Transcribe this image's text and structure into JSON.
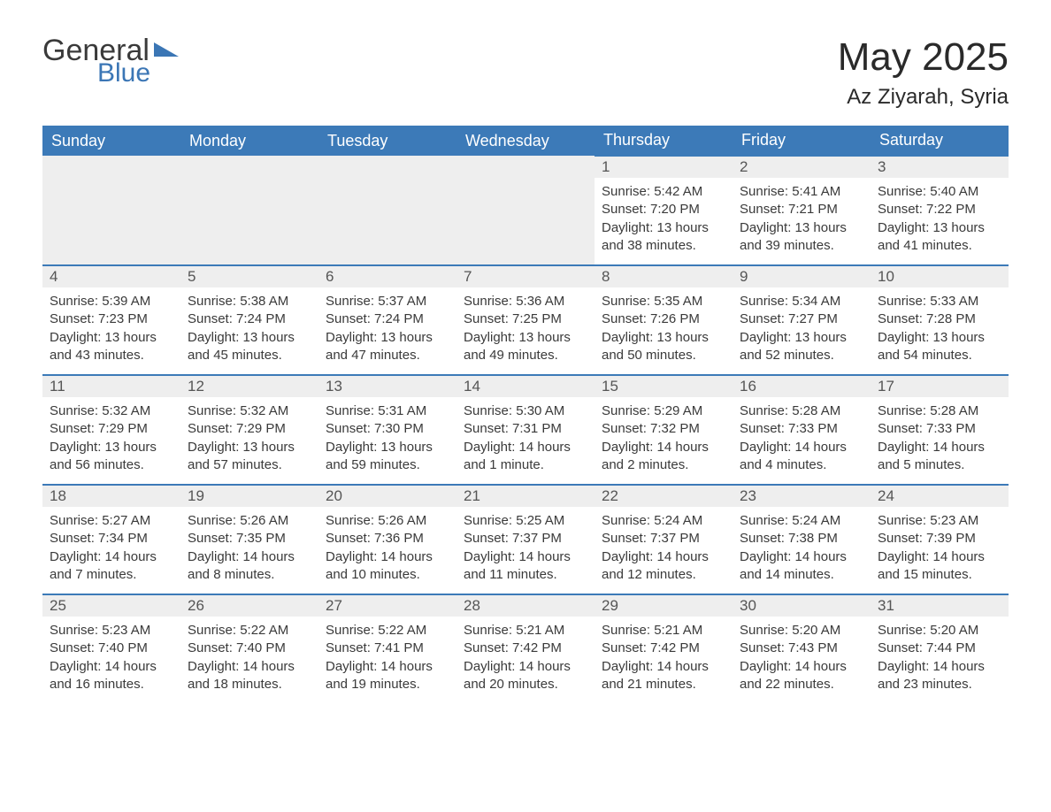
{
  "logo": {
    "text1": "General",
    "text2": "Blue"
  },
  "header": {
    "month_title": "May 2025",
    "location": "Az Ziyarah, Syria"
  },
  "colors": {
    "header_bg": "#3c7ab8",
    "header_text": "#ffffff",
    "daynum_bg": "#eeeeee",
    "border": "#3c7ab8",
    "text": "#3a3a3a",
    "logo_blue": "#3b76b5"
  },
  "weekdays": [
    "Sunday",
    "Monday",
    "Tuesday",
    "Wednesday",
    "Thursday",
    "Friday",
    "Saturday"
  ],
  "labels": {
    "sunrise": "Sunrise: ",
    "sunset": "Sunset: ",
    "daylight": "Daylight: "
  },
  "days": {
    "1": {
      "sunrise": "5:42 AM",
      "sunset": "7:20 PM",
      "daylight": "13 hours and 38 minutes."
    },
    "2": {
      "sunrise": "5:41 AM",
      "sunset": "7:21 PM",
      "daylight": "13 hours and 39 minutes."
    },
    "3": {
      "sunrise": "5:40 AM",
      "sunset": "7:22 PM",
      "daylight": "13 hours and 41 minutes."
    },
    "4": {
      "sunrise": "5:39 AM",
      "sunset": "7:23 PM",
      "daylight": "13 hours and 43 minutes."
    },
    "5": {
      "sunrise": "5:38 AM",
      "sunset": "7:24 PM",
      "daylight": "13 hours and 45 minutes."
    },
    "6": {
      "sunrise": "5:37 AM",
      "sunset": "7:24 PM",
      "daylight": "13 hours and 47 minutes."
    },
    "7": {
      "sunrise": "5:36 AM",
      "sunset": "7:25 PM",
      "daylight": "13 hours and 49 minutes."
    },
    "8": {
      "sunrise": "5:35 AM",
      "sunset": "7:26 PM",
      "daylight": "13 hours and 50 minutes."
    },
    "9": {
      "sunrise": "5:34 AM",
      "sunset": "7:27 PM",
      "daylight": "13 hours and 52 minutes."
    },
    "10": {
      "sunrise": "5:33 AM",
      "sunset": "7:28 PM",
      "daylight": "13 hours and 54 minutes."
    },
    "11": {
      "sunrise": "5:32 AM",
      "sunset": "7:29 PM",
      "daylight": "13 hours and 56 minutes."
    },
    "12": {
      "sunrise": "5:32 AM",
      "sunset": "7:29 PM",
      "daylight": "13 hours and 57 minutes."
    },
    "13": {
      "sunrise": "5:31 AM",
      "sunset": "7:30 PM",
      "daylight": "13 hours and 59 minutes."
    },
    "14": {
      "sunrise": "5:30 AM",
      "sunset": "7:31 PM",
      "daylight": "14 hours and 1 minute."
    },
    "15": {
      "sunrise": "5:29 AM",
      "sunset": "7:32 PM",
      "daylight": "14 hours and 2 minutes."
    },
    "16": {
      "sunrise": "5:28 AM",
      "sunset": "7:33 PM",
      "daylight": "14 hours and 4 minutes."
    },
    "17": {
      "sunrise": "5:28 AM",
      "sunset": "7:33 PM",
      "daylight": "14 hours and 5 minutes."
    },
    "18": {
      "sunrise": "5:27 AM",
      "sunset": "7:34 PM",
      "daylight": "14 hours and 7 minutes."
    },
    "19": {
      "sunrise": "5:26 AM",
      "sunset": "7:35 PM",
      "daylight": "14 hours and 8 minutes."
    },
    "20": {
      "sunrise": "5:26 AM",
      "sunset": "7:36 PM",
      "daylight": "14 hours and 10 minutes."
    },
    "21": {
      "sunrise": "5:25 AM",
      "sunset": "7:37 PM",
      "daylight": "14 hours and 11 minutes."
    },
    "22": {
      "sunrise": "5:24 AM",
      "sunset": "7:37 PM",
      "daylight": "14 hours and 12 minutes."
    },
    "23": {
      "sunrise": "5:24 AM",
      "sunset": "7:38 PM",
      "daylight": "14 hours and 14 minutes."
    },
    "24": {
      "sunrise": "5:23 AM",
      "sunset": "7:39 PM",
      "daylight": "14 hours and 15 minutes."
    },
    "25": {
      "sunrise": "5:23 AM",
      "sunset": "7:40 PM",
      "daylight": "14 hours and 16 minutes."
    },
    "26": {
      "sunrise": "5:22 AM",
      "sunset": "7:40 PM",
      "daylight": "14 hours and 18 minutes."
    },
    "27": {
      "sunrise": "5:22 AM",
      "sunset": "7:41 PM",
      "daylight": "14 hours and 19 minutes."
    },
    "28": {
      "sunrise": "5:21 AM",
      "sunset": "7:42 PM",
      "daylight": "14 hours and 20 minutes."
    },
    "29": {
      "sunrise": "5:21 AM",
      "sunset": "7:42 PM",
      "daylight": "14 hours and 21 minutes."
    },
    "30": {
      "sunrise": "5:20 AM",
      "sunset": "7:43 PM",
      "daylight": "14 hours and 22 minutes."
    },
    "31": {
      "sunrise": "5:20 AM",
      "sunset": "7:44 PM",
      "daylight": "14 hours and 23 minutes."
    }
  },
  "grid": [
    [
      null,
      null,
      null,
      null,
      "1",
      "2",
      "3"
    ],
    [
      "4",
      "5",
      "6",
      "7",
      "8",
      "9",
      "10"
    ],
    [
      "11",
      "12",
      "13",
      "14",
      "15",
      "16",
      "17"
    ],
    [
      "18",
      "19",
      "20",
      "21",
      "22",
      "23",
      "24"
    ],
    [
      "25",
      "26",
      "27",
      "28",
      "29",
      "30",
      "31"
    ]
  ]
}
